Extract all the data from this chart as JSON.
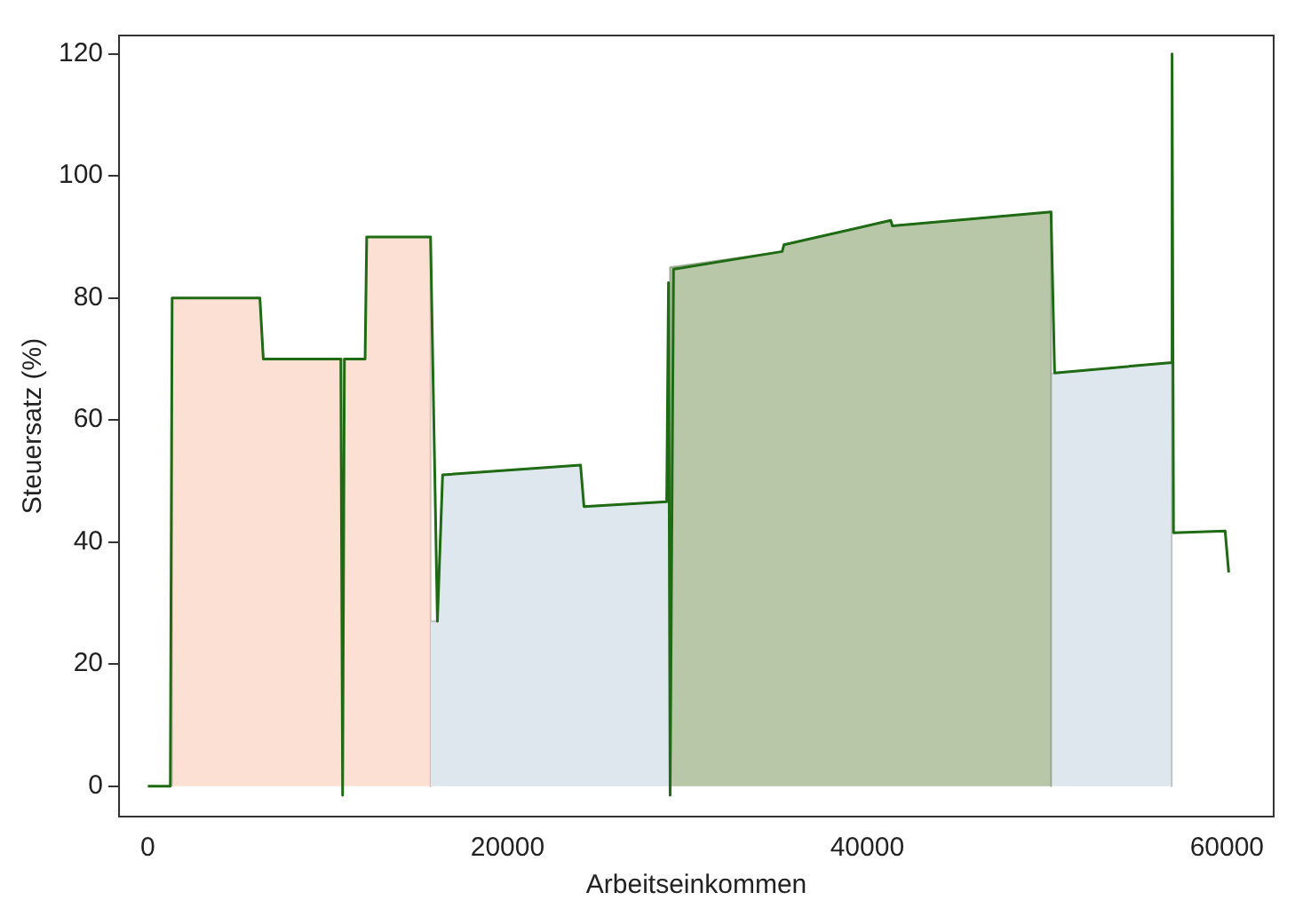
{
  "chart_data": {
    "type": "line",
    "xlabel": "Arbeitseinkommen",
    "ylabel": "Steuersatz (%)",
    "xlim": [
      -1600,
      62600
    ],
    "ylim": [
      -5,
      123
    ],
    "xticks": [
      0,
      20000,
      40000,
      60000
    ],
    "yticks": [
      0,
      20,
      40,
      60,
      80,
      100,
      120
    ],
    "grid": false,
    "legend": false,
    "marker": "none",
    "series": [
      {
        "type": "area",
        "color": "#fde0d4",
        "x": [
          1350,
          1350,
          6230,
          6420,
          12080,
          12170,
          15720,
          15720
        ],
        "values": [
          0,
          80,
          80,
          70,
          70,
          90,
          90,
          0
        ]
      },
      {
        "type": "area",
        "color": "#dee7ee",
        "x": [
          15720,
          16100,
          16390,
          24060,
          24250,
          28850,
          29040,
          50220,
          50420,
          56930,
          56930
        ],
        "values": [
          27,
          27,
          51,
          52.6,
          45.8,
          46.6,
          null,
          null,
          67.7,
          69.4,
          0
        ]
      },
      {
        "type": "area",
        "color": "#b9c7a9",
        "x": [
          29040,
          29040,
          35270,
          35370,
          41310,
          41400,
          50220,
          50220
        ],
        "values": [
          0,
          85,
          87.6,
          88.7,
          92.7,
          91.8,
          94.1,
          0
        ]
      },
      {
        "type": "line",
        "color": "#1e6b14",
        "x": [
          0,
          1250,
          1350,
          6230,
          6420,
          10730,
          10830,
          10930,
          12080,
          12170,
          15720,
          16100,
          16390,
          24060,
          24250,
          28850,
          28950,
          29040,
          29230,
          35270,
          35370,
          41310,
          41400,
          50220,
          50420,
          56930,
          56950,
          57030,
          59900,
          60100
        ],
        "values": [
          0,
          0,
          80,
          80,
          70,
          70,
          -1.5,
          70,
          70,
          90,
          90,
          27,
          51,
          52.6,
          45.8,
          46.6,
          82.5,
          -1.5,
          84.7,
          87.6,
          88.7,
          92.7,
          91.8,
          94.1,
          67.7,
          69.4,
          120,
          41.5,
          41.8,
          35
        ]
      }
    ]
  }
}
